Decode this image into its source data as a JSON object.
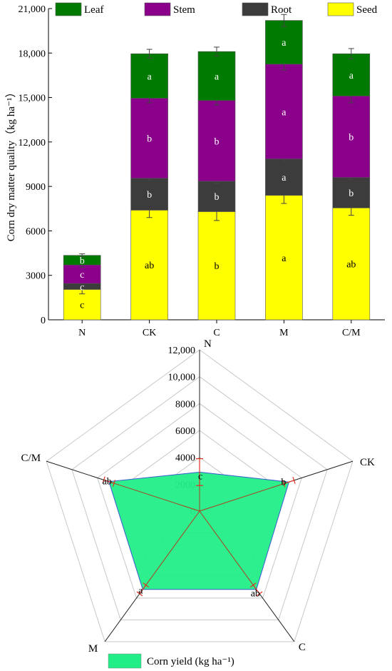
{
  "chart_data": [
    {
      "type": "bar",
      "stacked": true,
      "ylabel": "Corn dry matter quality（kg ha⁻¹）",
      "ylim": [
        0,
        21000
      ],
      "yticks": [
        "0",
        "3000",
        "6000",
        "9000",
        "12,000",
        "15,000",
        "18,000",
        "21,000"
      ],
      "categories": [
        "N",
        "CK",
        "C",
        "M",
        "C/M"
      ],
      "legend_position": "top",
      "series": [
        {
          "name": "Seed",
          "color": "#ffff00",
          "values": [
            2050,
            7400,
            7300,
            8400,
            7550
          ],
          "errors": [
            300,
            500,
            600,
            550,
            500
          ],
          "letters": [
            "c",
            "ab",
            "b",
            "a",
            "ab"
          ]
        },
        {
          "name": "Root",
          "color": "#3c3c3c",
          "values": [
            400,
            2150,
            2050,
            2450,
            2050
          ],
          "errors": [
            120,
            150,
            150,
            150,
            150
          ],
          "letters": [
            "c",
            "b",
            "b",
            "a",
            "b"
          ]
        },
        {
          "name": "Stem",
          "color": "#8b008b",
          "values": [
            1250,
            5400,
            5450,
            6400,
            5500
          ],
          "errors": [
            150,
            300,
            300,
            400,
            450
          ],
          "letters": [
            "c",
            "b",
            "b",
            "a",
            "b"
          ]
        },
        {
          "name": "Leaf",
          "color": "#007a00",
          "values": [
            650,
            3000,
            3300,
            2950,
            2850
          ],
          "errors": [
            100,
            300,
            300,
            400,
            350
          ],
          "letters": [
            "b",
            "a",
            "a",
            "a",
            "a"
          ]
        }
      ],
      "legend_order": [
        "Leaf",
        "Stem",
        "Root",
        "Seed"
      ]
    },
    {
      "type": "radar",
      "axes": [
        "N",
        "CK",
        "C",
        "M",
        "C/M"
      ],
      "rlim": [
        0,
        12000
      ],
      "rticks": [
        "0",
        "2000",
        "4000",
        "6000",
        "8000",
        "10,000",
        "12,000"
      ],
      "series": [
        {
          "name": "Corn  yield (kg ha⁻¹)",
          "color": "#22ee88",
          "values": [
            2900,
            7000,
            7200,
            7200,
            7100
          ],
          "errors": [
            1000,
            400,
            400,
            400,
            400
          ],
          "letters": [
            "c",
            "b",
            "ab",
            "a",
            "ab"
          ]
        }
      ]
    }
  ]
}
